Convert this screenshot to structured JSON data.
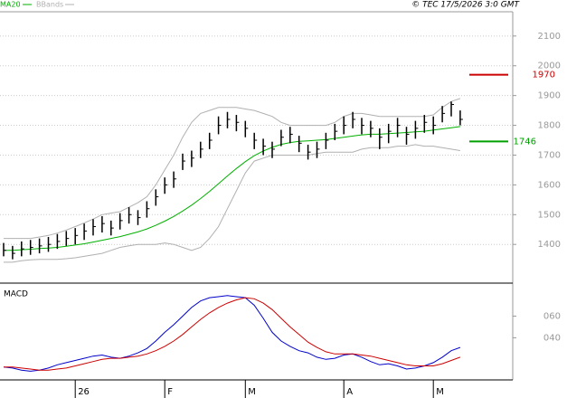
{
  "chart_data": [
    {
      "type": "ohlc",
      "annotation": "© TEC 17/5/2026 3:0 GMT",
      "categories": [
        null,
        null,
        null,
        null,
        null,
        null,
        null,
        null,
        "26",
        null,
        null,
        null,
        null,
        null,
        null,
        null,
        null,
        null,
        "F",
        null,
        null,
        null,
        null,
        null,
        null,
        null,
        null,
        "M",
        null,
        null,
        null,
        null,
        null,
        null,
        null,
        null,
        null,
        null,
        "A",
        null,
        null,
        null,
        null,
        null,
        null,
        null,
        null,
        null,
        "M",
        null,
        null,
        null
      ],
      "high": [
        1405,
        1395,
        1410,
        1415,
        1420,
        1425,
        1435,
        1445,
        1455,
        1470,
        1485,
        1495,
        1480,
        1505,
        1525,
        1515,
        1545,
        1585,
        1625,
        1645,
        1705,
        1715,
        1745,
        1775,
        1830,
        1845,
        1835,
        1815,
        1775,
        1755,
        1745,
        1785,
        1795,
        1765,
        1735,
        1745,
        1775,
        1805,
        1830,
        1845,
        1825,
        1815,
        1790,
        1805,
        1825,
        1795,
        1815,
        1835,
        1830,
        1865,
        1880,
        1850
      ],
      "low": [
        1360,
        1350,
        1360,
        1365,
        1370,
        1375,
        1385,
        1395,
        1400,
        1415,
        1430,
        1440,
        1430,
        1450,
        1470,
        1465,
        1490,
        1530,
        1570,
        1590,
        1650,
        1660,
        1690,
        1720,
        1770,
        1790,
        1780,
        1760,
        1720,
        1700,
        1690,
        1730,
        1740,
        1710,
        1685,
        1690,
        1720,
        1750,
        1770,
        1790,
        1770,
        1760,
        1720,
        1740,
        1760,
        1735,
        1755,
        1775,
        1770,
        1810,
        1830,
        1800
      ],
      "close": [
        1380,
        1370,
        1385,
        1390,
        1395,
        1400,
        1410,
        1420,
        1430,
        1445,
        1460,
        1470,
        1455,
        1480,
        1500,
        1490,
        1520,
        1560,
        1600,
        1620,
        1680,
        1690,
        1720,
        1750,
        1800,
        1820,
        1810,
        1790,
        1750,
        1730,
        1720,
        1760,
        1770,
        1740,
        1710,
        1720,
        1750,
        1780,
        1800,
        1820,
        1800,
        1790,
        1760,
        1780,
        1800,
        1770,
        1790,
        1810,
        1800,
        1840,
        1870,
        1820
      ],
      "bar_color": "#000000",
      "series": [
        {
          "name": "MA20",
          "color": "#00b000",
          "values": [
            1380,
            1380,
            1382,
            1384,
            1386,
            1388,
            1390,
            1394,
            1398,
            1402,
            1408,
            1414,
            1420,
            1426,
            1434,
            1442,
            1452,
            1464,
            1478,
            1494,
            1512,
            1532,
            1554,
            1578,
            1604,
            1630,
            1655,
            1678,
            1698,
            1714,
            1726,
            1736,
            1742,
            1746,
            1748,
            1750,
            1752,
            1756,
            1760,
            1764,
            1768,
            1770,
            1770,
            1772,
            1774,
            1776,
            1778,
            1780,
            1784,
            1788,
            1792,
            1796
          ]
        },
        {
          "name": "BBands",
          "color": "#b0b0b0",
          "upper": [
            1420,
            1420,
            1420,
            1420,
            1425,
            1430,
            1438,
            1448,
            1460,
            1472,
            1485,
            1500,
            1505,
            1510,
            1525,
            1540,
            1560,
            1600,
            1650,
            1700,
            1760,
            1810,
            1840,
            1850,
            1860,
            1860,
            1860,
            1855,
            1850,
            1840,
            1830,
            1810,
            1800,
            1800,
            1800,
            1800,
            1800,
            1810,
            1830,
            1840,
            1840,
            1835,
            1830,
            1830,
            1830,
            1830,
            1830,
            1830,
            1835,
            1860,
            1880,
            1890
          ],
          "lower": [
            1340,
            1340,
            1345,
            1348,
            1350,
            1350,
            1350,
            1352,
            1355,
            1360,
            1365,
            1370,
            1380,
            1390,
            1395,
            1400,
            1400,
            1400,
            1405,
            1400,
            1390,
            1380,
            1390,
            1420,
            1460,
            1520,
            1580,
            1640,
            1680,
            1690,
            1700,
            1700,
            1700,
            1700,
            1700,
            1705,
            1710,
            1710,
            1710,
            1710,
            1720,
            1725,
            1725,
            1725,
            1730,
            1730,
            1735,
            1730,
            1730,
            1725,
            1720,
            1715
          ]
        }
      ],
      "levels": [
        {
          "value": 1970,
          "color": "#cc0000"
        },
        {
          "value": 1746,
          "color": "#00a000"
        }
      ],
      "ylim": [
        1273,
        2221
      ],
      "yticks": [
        1400,
        1500,
        1600,
        1700,
        1800,
        1900,
        2000,
        2100
      ],
      "grid": true
    },
    {
      "type": "line",
      "title": "MACD",
      "series": [
        {
          "color": "#0000cc",
          "values": [
            13,
            12,
            10,
            9,
            10,
            12,
            15,
            17,
            19,
            21,
            23,
            24,
            22,
            21,
            23,
            26,
            30,
            37,
            45,
            52,
            60,
            68,
            74,
            77,
            78,
            79,
            78,
            77,
            70,
            58,
            45,
            37,
            32,
            28,
            26,
            22,
            20,
            21,
            24,
            25,
            22,
            18,
            15,
            16,
            14,
            11,
            12,
            14,
            17,
            22,
            28,
            31
          ]
        },
        {
          "color": "#cc0000",
          "values": [
            13,
            13,
            12,
            11,
            10,
            10,
            11,
            12,
            14,
            16,
            18,
            20,
            21,
            21,
            22,
            23,
            25,
            28,
            32,
            37,
            43,
            50,
            57,
            63,
            68,
            72,
            75,
            77,
            76,
            72,
            66,
            58,
            50,
            43,
            36,
            31,
            27,
            25,
            25,
            25,
            24,
            23,
            21,
            19,
            17,
            15,
            14,
            14,
            14,
            16,
            19,
            22
          ]
        }
      ],
      "ylim": [
        1,
        88
      ],
      "yticks": [
        {
          "value": 40,
          "label": "040"
        },
        {
          "value": 60,
          "label": "060"
        }
      ]
    }
  ]
}
